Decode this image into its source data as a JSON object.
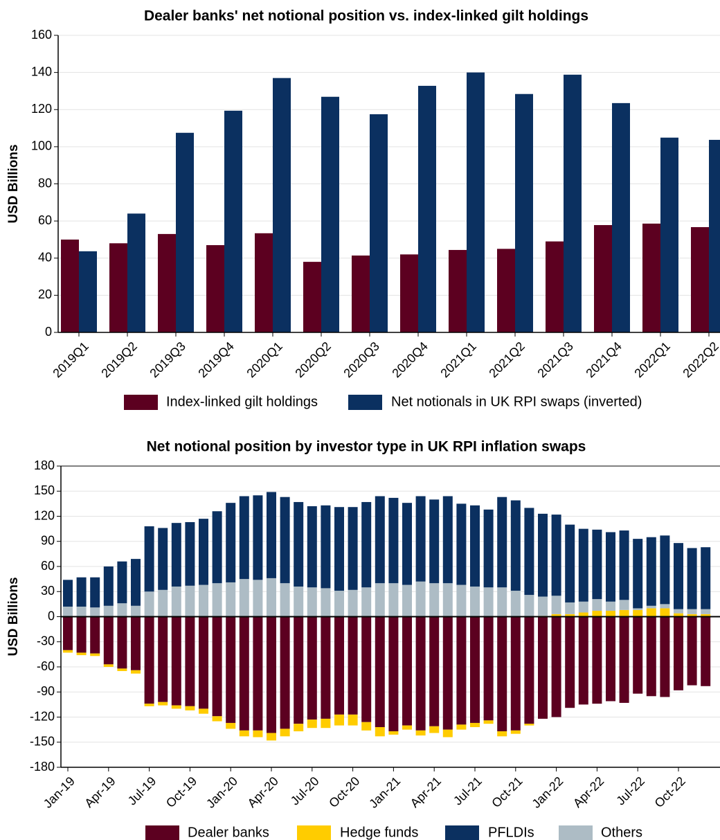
{
  "chart_data": [
    {
      "type": "bar",
      "title": "Dealer banks' net notional position vs. index-linked gilt holdings",
      "y_label": "USD Billions",
      "categories": [
        "2019Q1",
        "2019Q2",
        "2019Q3",
        "2019Q4",
        "2020Q1",
        "2020Q2",
        "2020Q3",
        "2020Q4",
        "2021Q1",
        "2021Q2",
        "2021Q3",
        "2021Q4",
        "2022Q1",
        "2022Q2"
      ],
      "series": [
        {
          "name": "Index-linked gilt holdings",
          "color": "#5c0020",
          "values": [
            50,
            48,
            53,
            47,
            53.4,
            38,
            41.4,
            42,
            44.4,
            45,
            49,
            57.8,
            58.6,
            56.7
          ]
        },
        {
          "name": "Net notionals in UK RPI swaps (inverted)",
          "color": "#0b3060",
          "values": [
            43.7,
            64,
            107.5,
            119.4,
            137,
            126.9,
            117.5,
            132.8,
            140,
            128.4,
            138.8,
            123.5,
            104.9,
            103.7
          ]
        }
      ],
      "ylim": [
        0,
        160
      ],
      "yticks": [
        0,
        20,
        40,
        60,
        80,
        100,
        120,
        140,
        160
      ],
      "grid": true
    },
    {
      "type": "stacked_bar",
      "title": "Net notional position by investor type in UK RPI inflation swaps",
      "y_label": "USD Billions",
      "categories": [
        "Jan-19",
        null,
        null,
        "Apr-19",
        null,
        null,
        "Jul-19",
        null,
        null,
        "Oct-19",
        null,
        null,
        "Jan-20",
        null,
        null,
        "Apr-20",
        null,
        null,
        "Jul-20",
        null,
        null,
        "Oct-20",
        null,
        null,
        "Jan-21",
        null,
        null,
        "Apr-21",
        null,
        null,
        "Jul-21",
        null,
        null,
        "Oct-21",
        null,
        null,
        "Jan-22",
        null,
        null,
        "Apr-22",
        null,
        null,
        "Jul-22",
        null,
        null,
        "Oct-22",
        null,
        null
      ],
      "series": [
        {
          "name": "Dealer banks",
          "color": "#5c0020",
          "values": [
            -40,
            -43,
            -44,
            -57,
            -62,
            -64,
            -104,
            -102,
            -106,
            -107,
            -110,
            -119,
            -127,
            -136,
            -136,
            -139,
            -134,
            -128,
            -123,
            -122,
            -117,
            -117,
            -126,
            -132,
            -137,
            -130,
            -136,
            -131,
            -135,
            -129,
            -127,
            -124,
            -137,
            -136,
            -128,
            -122,
            -120,
            -109,
            -105,
            -104,
            -101,
            -103,
            -92,
            -95,
            -96,
            -88,
            -82,
            -83
          ]
        },
        {
          "name": "Hedge funds",
          "color": "#ffcc00",
          "values": [
            -3,
            -3,
            -3,
            -3,
            -3,
            -4,
            -3,
            -4,
            -4,
            -5,
            -6,
            -6,
            -7,
            -7,
            -8,
            -9,
            -9,
            -9,
            -10,
            -11,
            -13,
            -13,
            -10,
            -11,
            -4,
            -5,
            -6,
            -8,
            -9,
            -6,
            -5,
            -4,
            -6,
            -4,
            -2,
            1,
            3,
            3,
            5,
            7,
            7,
            8,
            8,
            10,
            10,
            4,
            3,
            3
          ]
        },
        {
          "name": "PFLDIs",
          "color": "#0b3060",
          "values": [
            32,
            35,
            36,
            47,
            50,
            56,
            78,
            74,
            76,
            76,
            79,
            86,
            95,
            99,
            101,
            103,
            103,
            101,
            97,
            99,
            100,
            99,
            102,
            104,
            102,
            98,
            102,
            100,
            104,
            97,
            97,
            93,
            108,
            108,
            104,
            99,
            97,
            93,
            87,
            83,
            83,
            83,
            83,
            82,
            82,
            79,
            73,
            74
          ]
        },
        {
          "name": "Others",
          "color": "#adbcc5",
          "values": [
            12,
            12,
            11,
            13,
            16,
            13,
            30,
            32,
            36,
            37,
            38,
            40,
            41,
            45,
            44,
            46,
            40,
            36,
            35,
            34,
            31,
            32,
            35,
            40,
            40,
            38,
            42,
            40,
            40,
            38,
            36,
            35,
            35,
            31,
            26,
            23,
            22,
            14,
            13,
            14,
            11,
            12,
            2,
            3,
            5,
            5,
            6,
            6
          ]
        }
      ],
      "ylim": [
        -180,
        180
      ],
      "yticks": [
        -180,
        -150,
        -120,
        -90,
        -60,
        -30,
        0,
        30,
        60,
        90,
        120,
        150,
        180
      ],
      "grid": true
    }
  ]
}
